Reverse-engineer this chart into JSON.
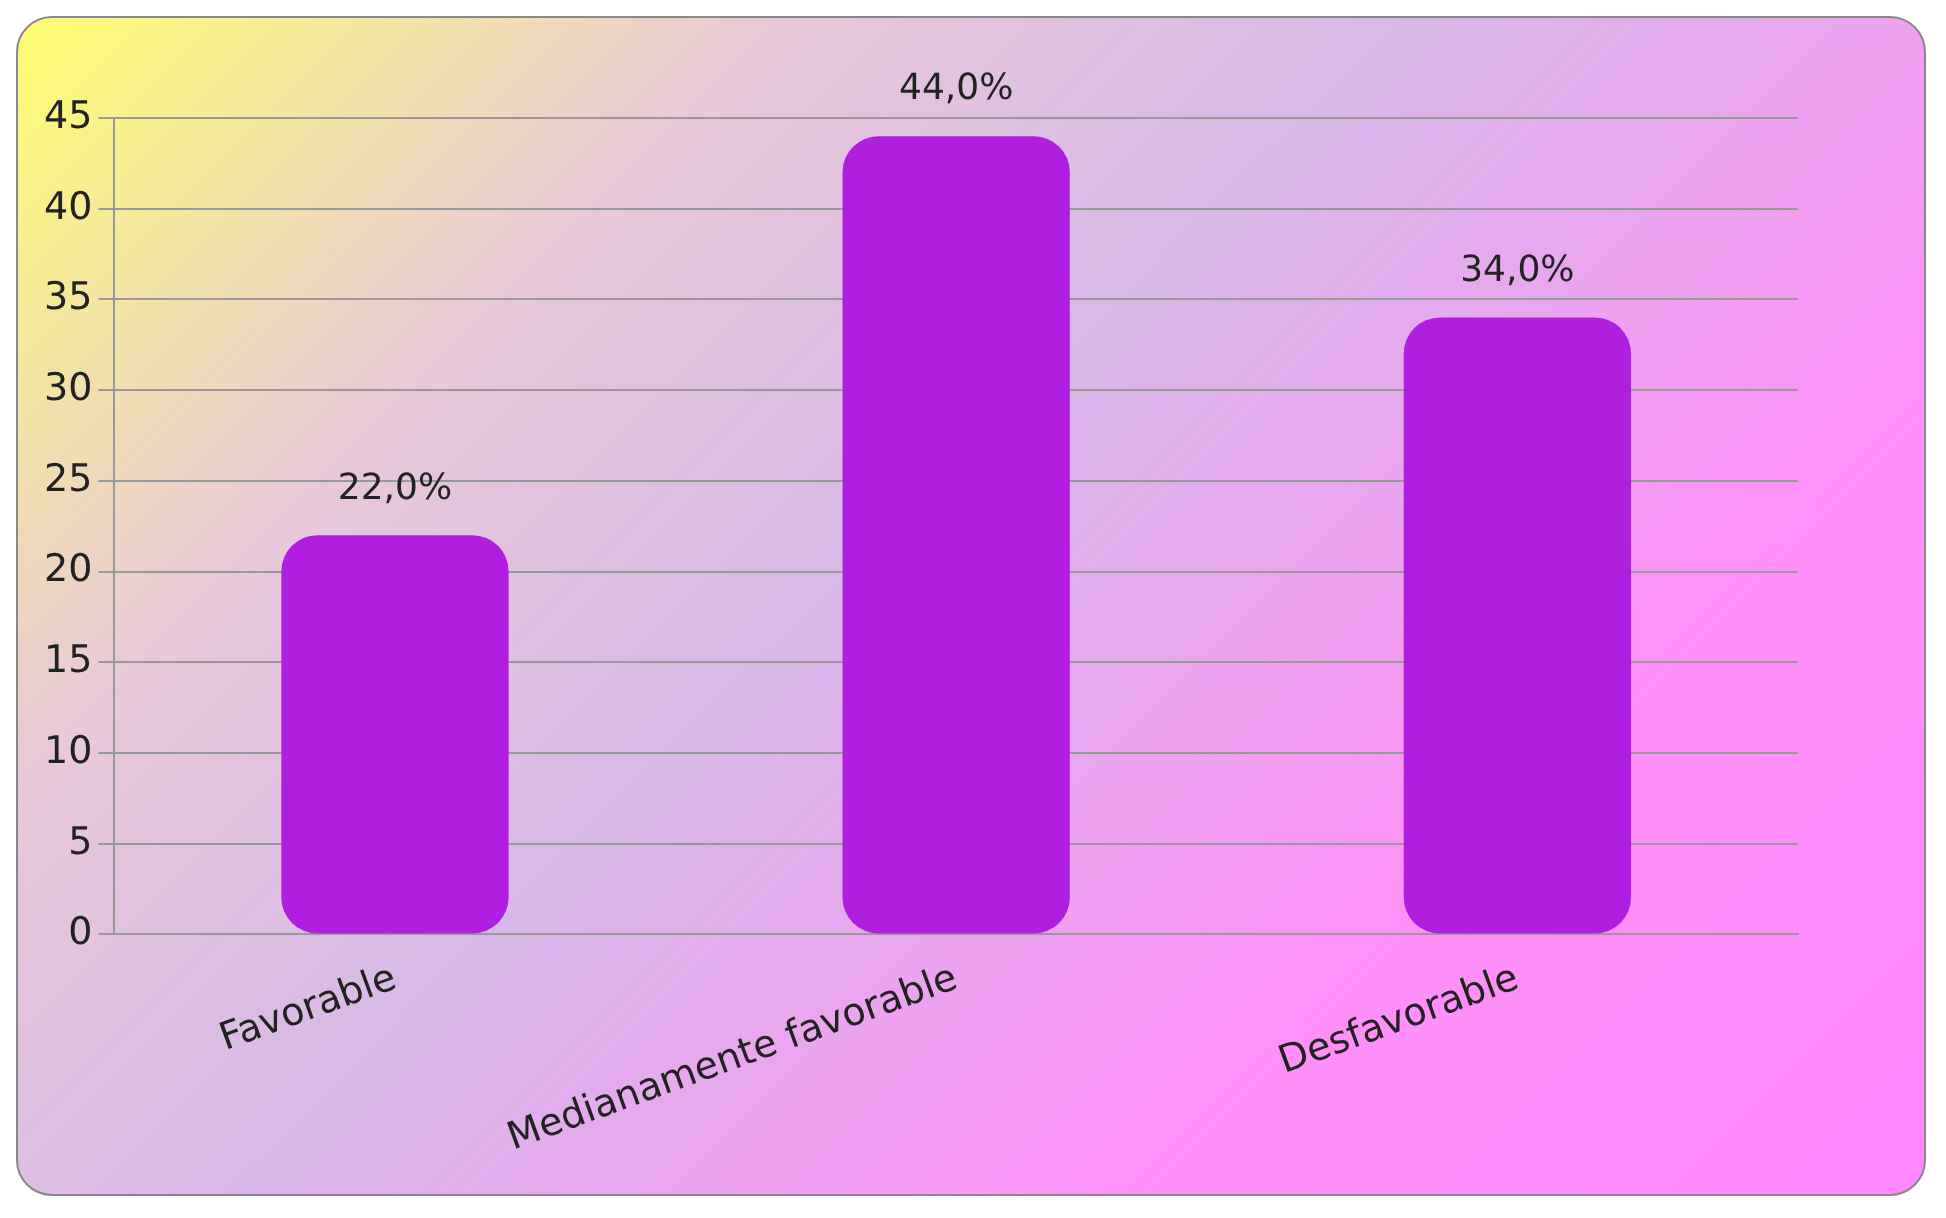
{
  "chart_data": {
    "type": "bar",
    "categories": [
      "Favorable",
      "Medianamente favorable",
      "Desfavorable"
    ],
    "values": [
      22,
      44,
      34
    ],
    "color": "#b01ee0",
    "value_labels": [
      "22,0%",
      "44,0%",
      "34,0%"
    ],
    "ylim": [
      0,
      45
    ],
    "yticks": [
      0,
      5,
      10,
      15,
      20,
      25,
      30,
      35,
      40,
      45
    ],
    "grid": "y"
  }
}
